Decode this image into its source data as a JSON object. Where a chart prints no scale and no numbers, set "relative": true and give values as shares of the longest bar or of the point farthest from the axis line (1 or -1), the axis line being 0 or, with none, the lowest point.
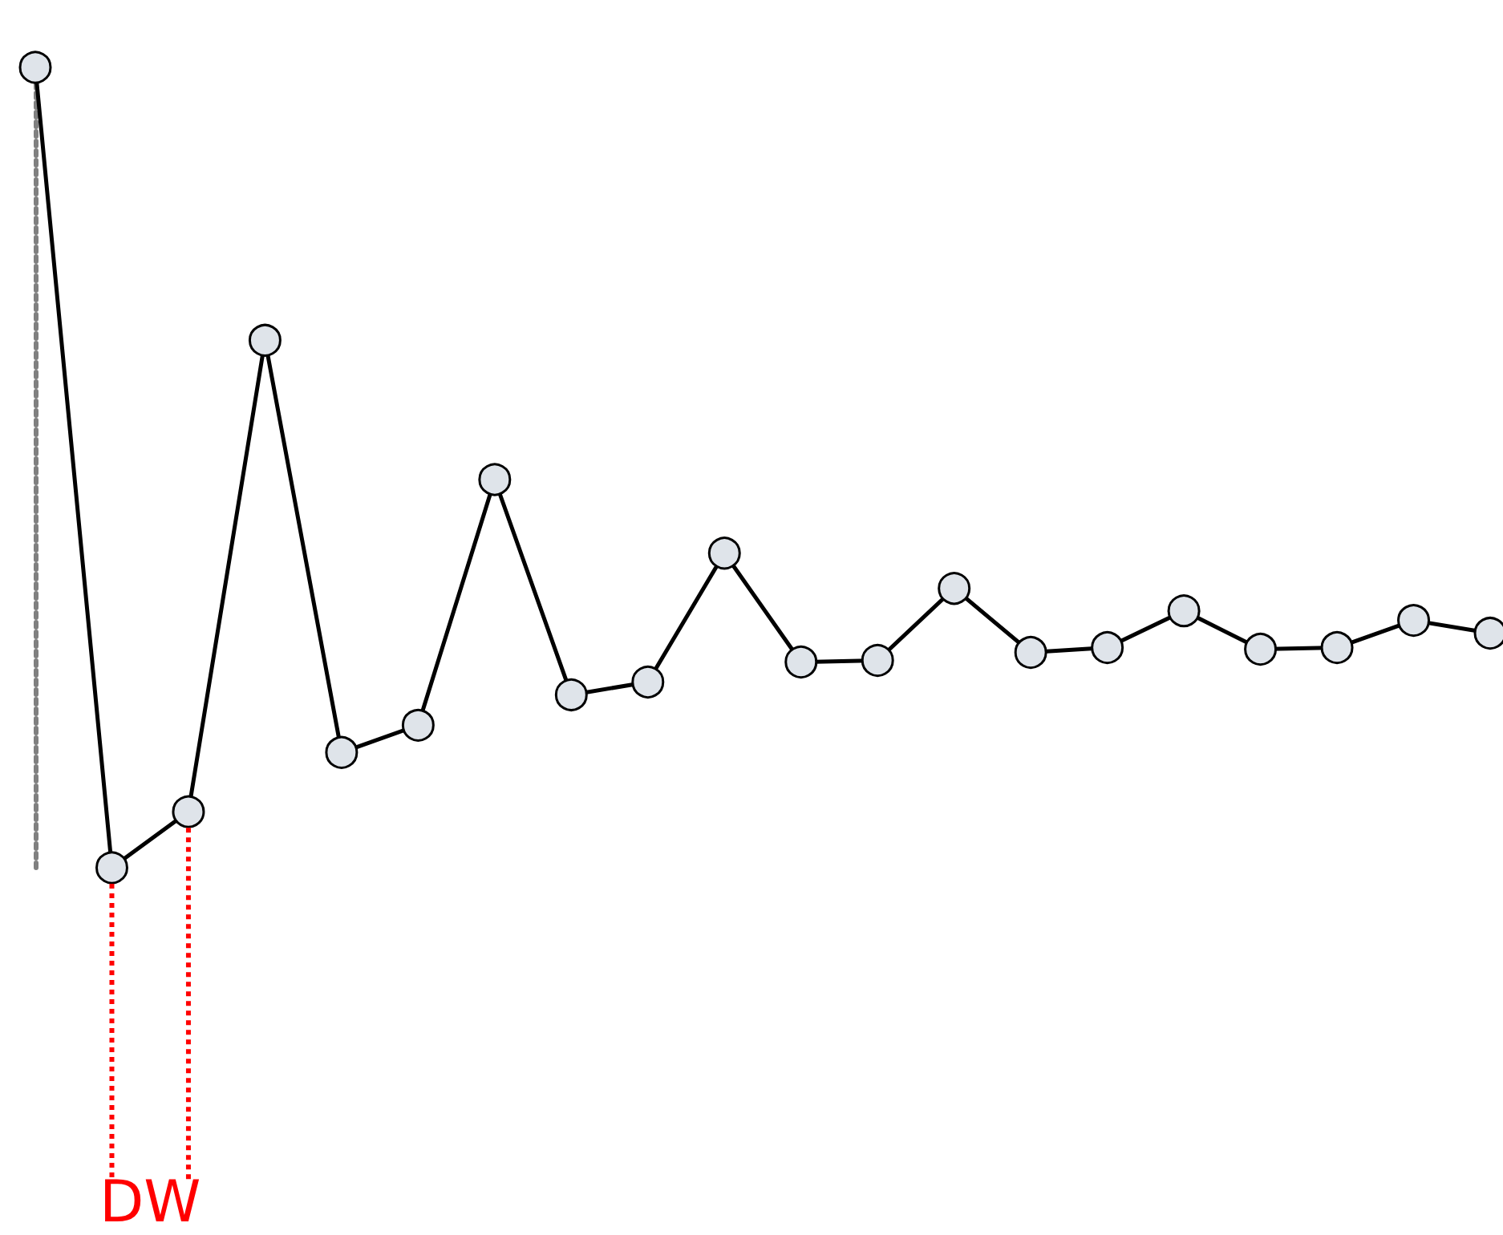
{
  "chart_data": {
    "type": "line",
    "relative": true,
    "grid": false,
    "marker": "circle",
    "line_style": "solid",
    "categories": [
      null,
      null,
      null,
      null,
      null,
      null,
      null,
      null,
      null,
      null,
      null,
      null,
      null,
      null,
      null,
      null,
      null,
      null,
      null,
      null
    ],
    "series": [
      {
        "color": "#000000",
        "values": [
          1.0,
          0,
          0.07,
          0.659,
          0.144,
          0.178,
          0.485,
          0.216,
          0.232,
          0.393,
          0.257,
          0.259,
          0.349,
          0.269,
          0.275,
          0.321,
          0.273,
          0.275,
          0.309,
          0.293
        ]
      }
    ],
    "annotations": [
      "DW"
    ]
  }
}
